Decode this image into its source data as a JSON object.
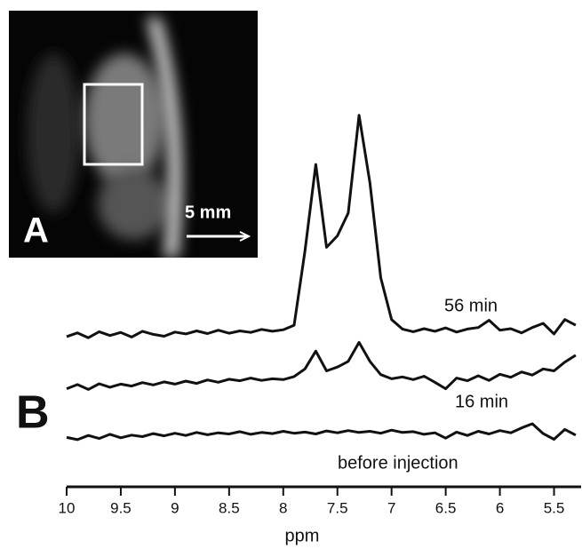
{
  "image": {
    "panel_label": "A",
    "scale_bar": "5 mm"
  },
  "chart_data": {
    "type": "line",
    "panel_label": "B",
    "xlabel": "ppm",
    "xlim": [
      10,
      5.25
    ],
    "xticks": [
      10,
      9.5,
      9,
      8.5,
      8,
      7.5,
      7,
      6.5,
      6,
      5.5
    ],
    "ylim": [
      0,
      100
    ],
    "color": "#111111",
    "x": [
      10.0,
      9.9,
      9.8,
      9.7,
      9.6,
      9.5,
      9.4,
      9.3,
      9.2,
      9.1,
      9.0,
      8.9,
      8.8,
      8.7,
      8.6,
      8.5,
      8.4,
      8.3,
      8.2,
      8.1,
      8.0,
      7.9,
      7.8,
      7.7,
      7.6,
      7.5,
      7.4,
      7.3,
      7.2,
      7.1,
      7.0,
      6.9,
      6.8,
      6.7,
      6.6,
      6.5,
      6.4,
      6.3,
      6.2,
      6.1,
      6.0,
      5.9,
      5.8,
      5.7,
      5.6,
      5.5,
      5.4,
      5.3
    ],
    "series": [
      {
        "name": "56 min",
        "color": "#111111",
        "values": [
          39.5,
          40.5,
          39.2,
          40.8,
          39.8,
          40.6,
          39.4,
          40.9,
          40.1,
          39.6,
          40.7,
          40.2,
          41.0,
          40.3,
          41.2,
          40.4,
          41.0,
          40.6,
          41.4,
          40.9,
          41.3,
          42.5,
          62,
          84.8,
          63,
          66,
          72,
          97.7,
          80,
          55,
          44,
          41.5,
          40.8,
          41.6,
          40.9,
          41.8,
          40.7,
          41.5,
          41.9,
          43.8,
          41.2,
          41.6,
          40.5,
          41.9,
          43,
          40.2,
          44,
          42.5
        ]
      },
      {
        "name": "16 min",
        "color": "#111111",
        "values": [
          25.8,
          26.9,
          25.6,
          27.1,
          26.2,
          27.0,
          26.5,
          27.4,
          26.8,
          27.6,
          27.0,
          27.8,
          27.2,
          28.1,
          27.5,
          28.3,
          27.9,
          28.6,
          28.0,
          28.4,
          28.2,
          29.0,
          31,
          35.7,
          30.5,
          31.5,
          33,
          38,
          33,
          29.5,
          28.4,
          28.9,
          28.2,
          29.1,
          27.5,
          25.8,
          28.6,
          27.9,
          29.2,
          28.0,
          29.6,
          28.8,
          30.2,
          29.4,
          31.0,
          30.5,
          32.8,
          34.6
        ]
      },
      {
        "name": "before injection",
        "color": "#111111",
        "values": [
          13.0,
          12.4,
          13.5,
          12.7,
          13.8,
          12.9,
          13.6,
          13.2,
          14.0,
          13.4,
          14.1,
          13.5,
          14.3,
          13.7,
          14.2,
          13.9,
          14.5,
          13.8,
          14.3,
          14.0,
          14.6,
          14.1,
          14.4,
          13.9,
          14.7,
          14.2,
          14.8,
          14.3,
          14.6,
          14.1,
          14.9,
          14.3,
          14.5,
          13.8,
          14.2,
          12.8,
          14.4,
          13.5,
          14.6,
          13.9,
          14.8,
          14.2,
          15.5,
          16.6,
          14.0,
          12.5,
          15.1,
          13.6
        ]
      }
    ]
  }
}
